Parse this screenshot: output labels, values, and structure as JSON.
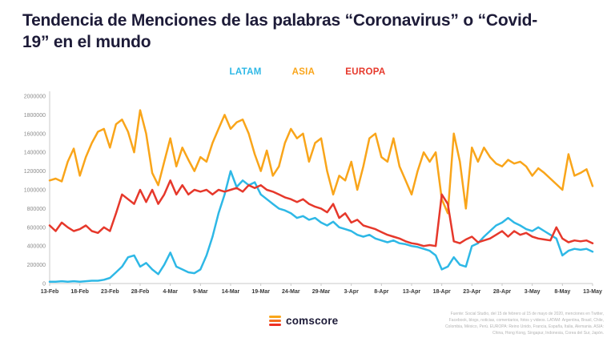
{
  "title": "Tendencia de Menciones de las palabras “Coronavirus” o “Covid-19” en el mundo",
  "chart_data": {
    "type": "line",
    "title": "Tendencia de Menciones de las palabras “Coronavirus” o “Covid-19” en el mundo",
    "xlabel": "",
    "ylabel": "",
    "ylim": [
      0,
      2000000
    ],
    "y_tick_step": 200000,
    "grid": false,
    "legend_position": "top-center",
    "x_count": 91,
    "x_tick_step": 5,
    "x_tick_labels": [
      "13-Feb",
      "18-Feb",
      "23-Feb",
      "28-Feb",
      "4-Mar",
      "9-Mar",
      "14-Mar",
      "19-Mar",
      "24-Mar",
      "29-Mar",
      "3-Apr",
      "8-Apr",
      "13-Apr",
      "18-Apr",
      "23-Apr",
      "28-Apr",
      "3-May",
      "8-May",
      "13-May"
    ],
    "series": [
      {
        "name": "LATAM",
        "color": "#2eb8e6",
        "values": [
          20000,
          20000,
          25000,
          20000,
          25000,
          20000,
          25000,
          30000,
          30000,
          40000,
          60000,
          120000,
          180000,
          280000,
          300000,
          180000,
          220000,
          150000,
          100000,
          200000,
          330000,
          180000,
          150000,
          120000,
          110000,
          150000,
          300000,
          500000,
          750000,
          950000,
          1200000,
          1030000,
          1100000,
          1050000,
          1080000,
          950000,
          900000,
          850000,
          800000,
          780000,
          750000,
          700000,
          720000,
          680000,
          700000,
          650000,
          620000,
          660000,
          600000,
          580000,
          560000,
          520000,
          500000,
          520000,
          480000,
          460000,
          440000,
          460000,
          430000,
          420000,
          400000,
          390000,
          370000,
          350000,
          300000,
          150000,
          180000,
          280000,
          200000,
          180000,
          400000,
          430000,
          500000,
          560000,
          620000,
          650000,
          700000,
          650000,
          620000,
          580000,
          560000,
          600000,
          560000,
          520000,
          480000,
          300000,
          350000,
          370000,
          360000,
          370000,
          340000
        ]
      },
      {
        "name": "ASIA",
        "color": "#f9a51a",
        "values": [
          1100000,
          1120000,
          1090000,
          1300000,
          1440000,
          1150000,
          1350000,
          1500000,
          1620000,
          1650000,
          1450000,
          1700000,
          1750000,
          1620000,
          1400000,
          1850000,
          1600000,
          1180000,
          1050000,
          1300000,
          1550000,
          1250000,
          1450000,
          1320000,
          1200000,
          1350000,
          1300000,
          1500000,
          1650000,
          1800000,
          1650000,
          1720000,
          1750000,
          1600000,
          1380000,
          1200000,
          1420000,
          1150000,
          1250000,
          1500000,
          1650000,
          1550000,
          1600000,
          1300000,
          1500000,
          1550000,
          1200000,
          950000,
          1150000,
          1100000,
          1300000,
          1000000,
          1250000,
          1550000,
          1600000,
          1350000,
          1300000,
          1550000,
          1250000,
          1100000,
          950000,
          1200000,
          1400000,
          1300000,
          1400000,
          900000,
          750000,
          1600000,
          1300000,
          800000,
          1450000,
          1300000,
          1450000,
          1350000,
          1280000,
          1250000,
          1320000,
          1280000,
          1300000,
          1250000,
          1150000,
          1230000,
          1180000,
          1120000,
          1060000,
          1000000,
          1380000,
          1150000,
          1180000,
          1220000,
          1040000
        ]
      },
      {
        "name": "EUROPA",
        "color": "#e6382b",
        "values": [
          620000,
          560000,
          650000,
          600000,
          560000,
          580000,
          620000,
          560000,
          540000,
          600000,
          560000,
          750000,
          950000,
          900000,
          850000,
          1000000,
          870000,
          1000000,
          850000,
          950000,
          1100000,
          950000,
          1050000,
          950000,
          1000000,
          980000,
          1000000,
          950000,
          1000000,
          980000,
          1000000,
          1020000,
          980000,
          1050000,
          1020000,
          1050000,
          1000000,
          980000,
          950000,
          920000,
          900000,
          870000,
          900000,
          850000,
          820000,
          800000,
          760000,
          850000,
          700000,
          750000,
          650000,
          680000,
          620000,
          600000,
          580000,
          550000,
          520000,
          500000,
          480000,
          450000,
          430000,
          420000,
          400000,
          410000,
          400000,
          950000,
          850000,
          450000,
          430000,
          470000,
          500000,
          440000,
          460000,
          480000,
          520000,
          560000,
          500000,
          560000,
          520000,
          540000,
          500000,
          480000,
          470000,
          460000,
          600000,
          480000,
          440000,
          460000,
          450000,
          460000,
          430000
        ]
      }
    ]
  },
  "footer": {
    "logo_text": "comscore",
    "source_lines": [
      "Fuente: Social Studio, del 15 de febrero al 15 de mayo de 2020, menciones en Twitter,",
      "Facebook, blogs, noticias, comentarios, fotos y videos. LATAM: Argentina, Brasil, Chile,",
      "Colombia, México, Perú. EUROPA: Reino Unido, Francia, España, Italia, Alemania. ASIA:",
      "China, Hong Kong, Singapur, Indonesia, Corea del Sur, Japón."
    ]
  }
}
